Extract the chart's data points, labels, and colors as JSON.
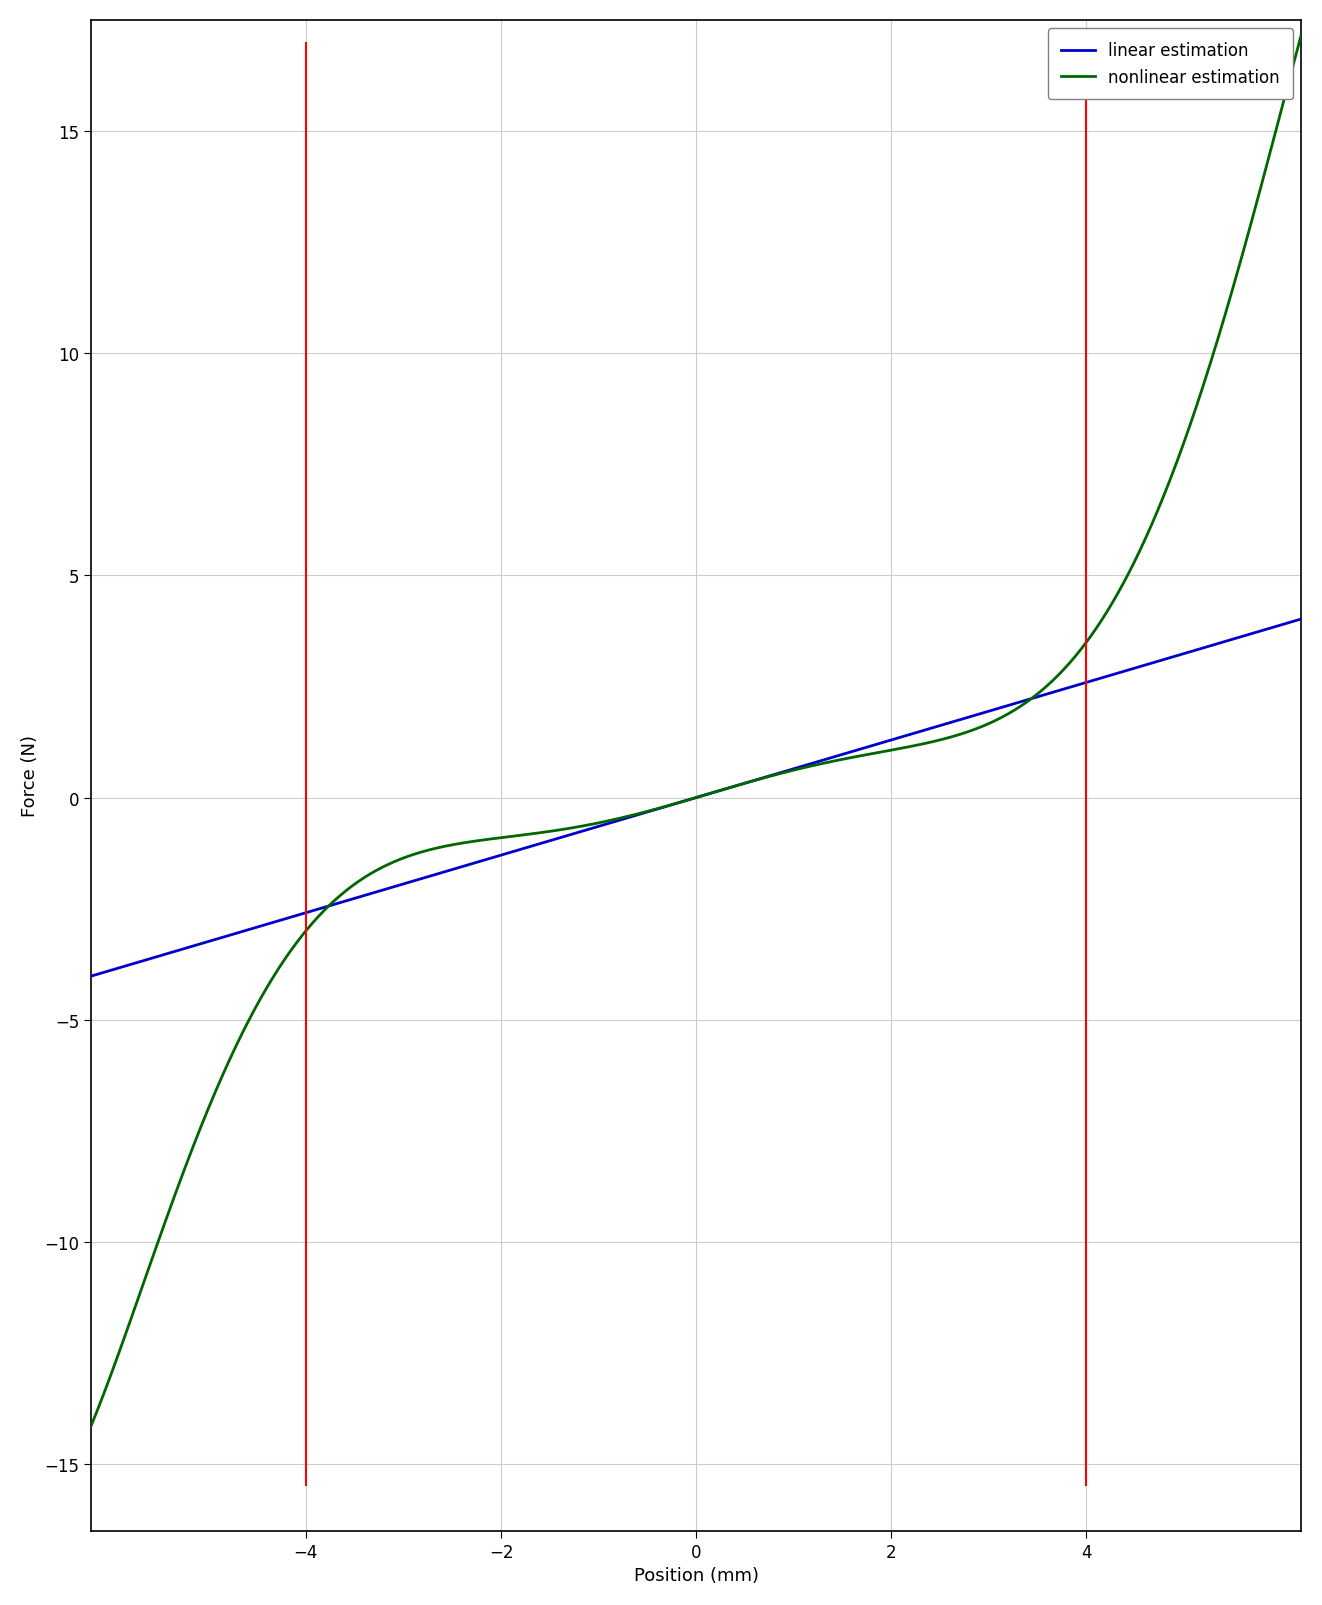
{
  "title": "",
  "xlabel": "Position (mm)",
  "ylabel": "Force (N)",
  "xlim": [
    -6.2,
    6.2
  ],
  "ylim": [
    -16.5,
    17.5
  ],
  "xticks": [
    -4,
    -2,
    0,
    2,
    4
  ],
  "yticks": [
    -15,
    -10,
    -5,
    0,
    5,
    10,
    15
  ],
  "linear_color": "#0000cc",
  "nonlinear_color": "#006600",
  "vline_color": "#ff0000",
  "vline_x": [
    -4.0,
    4.0
  ],
  "vline_ymin": -15.5,
  "vline_ymax": 17.0,
  "legend_labels": [
    "linear estimation",
    "nonlinear estimation"
  ],
  "background_color": "#ffffff",
  "grid_color": "#cccccc",
  "k1": 0.648,
  "k3": 0.012,
  "k5": 0.018,
  "k7": 0.003
}
